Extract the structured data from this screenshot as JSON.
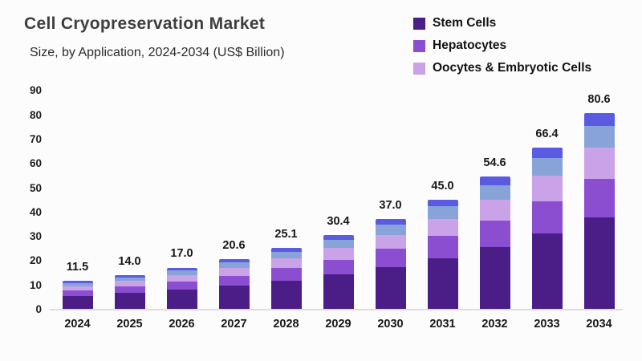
{
  "header": {
    "title": "Cell Cryopreservation Market",
    "subtitle": "Size, by Application, 2024-2034 (US$ Billion)"
  },
  "legend": {
    "position": "top-right",
    "items": [
      {
        "label": "Stem Cells",
        "color": "#4A1D87"
      },
      {
        "label": "Hepatocytes",
        "color": "#8B4ED0"
      },
      {
        "label": "Oocytes & Embryotic Cells",
        "color": "#C9A2E8"
      }
    ]
  },
  "chart_data": {
    "type": "bar",
    "stacked": true,
    "title": "Cell Cryopreservation Market",
    "subtitle": "Size, by Application, 2024-2034 (US$ Billion)",
    "xlabel": "",
    "ylabel": "",
    "ylim": [
      0,
      90
    ],
    "y_ticks": [
      0,
      10,
      20,
      30,
      40,
      50,
      60,
      70,
      80,
      90
    ],
    "grid": false,
    "legend_position": "top-right",
    "categories": [
      "2024",
      "2025",
      "2026",
      "2027",
      "2028",
      "2029",
      "2030",
      "2031",
      "2032",
      "2033",
      "2034"
    ],
    "totals": [
      11.5,
      14.0,
      17.0,
      20.6,
      25.1,
      30.4,
      37.0,
      45.0,
      54.6,
      66.4,
      80.6
    ],
    "total_labels": [
      "11.5",
      "14.0",
      "17.0",
      "20.6",
      "25.1",
      "30.4",
      "37.0",
      "45.0",
      "54.6",
      "66.4",
      "80.6"
    ],
    "series": [
      {
        "name": "Stem Cells",
        "color": "#4A1D87",
        "values": [
          5.3,
          6.5,
          7.9,
          9.6,
          11.7,
          14.1,
          17.2,
          20.9,
          25.4,
          30.9,
          37.5
        ]
      },
      {
        "name": "Hepatocytes",
        "color": "#8B4ED0",
        "values": [
          2.3,
          2.8,
          3.4,
          4.1,
          5.0,
          6.1,
          7.4,
          9.0,
          10.9,
          13.3,
          16.1
        ]
      },
      {
        "name": "Oocytes & Embryotic Cells",
        "color": "#C9A2E8",
        "values": [
          1.8,
          2.2,
          2.7,
          3.3,
          4.0,
          4.9,
          5.9,
          7.2,
          8.7,
          10.6,
          12.9
        ]
      },
      {
        "name": "",
        "color": "#88A3D8",
        "values": [
          1.3,
          1.5,
          1.9,
          2.3,
          2.8,
          3.3,
          4.1,
          5.0,
          6.0,
          7.3,
          8.9
        ]
      },
      {
        "name": "",
        "color": "#5B5BE2",
        "values": [
          0.8,
          1.0,
          1.1,
          1.3,
          1.6,
          2.0,
          2.4,
          2.9,
          3.6,
          4.3,
          5.2
        ]
      }
    ]
  }
}
